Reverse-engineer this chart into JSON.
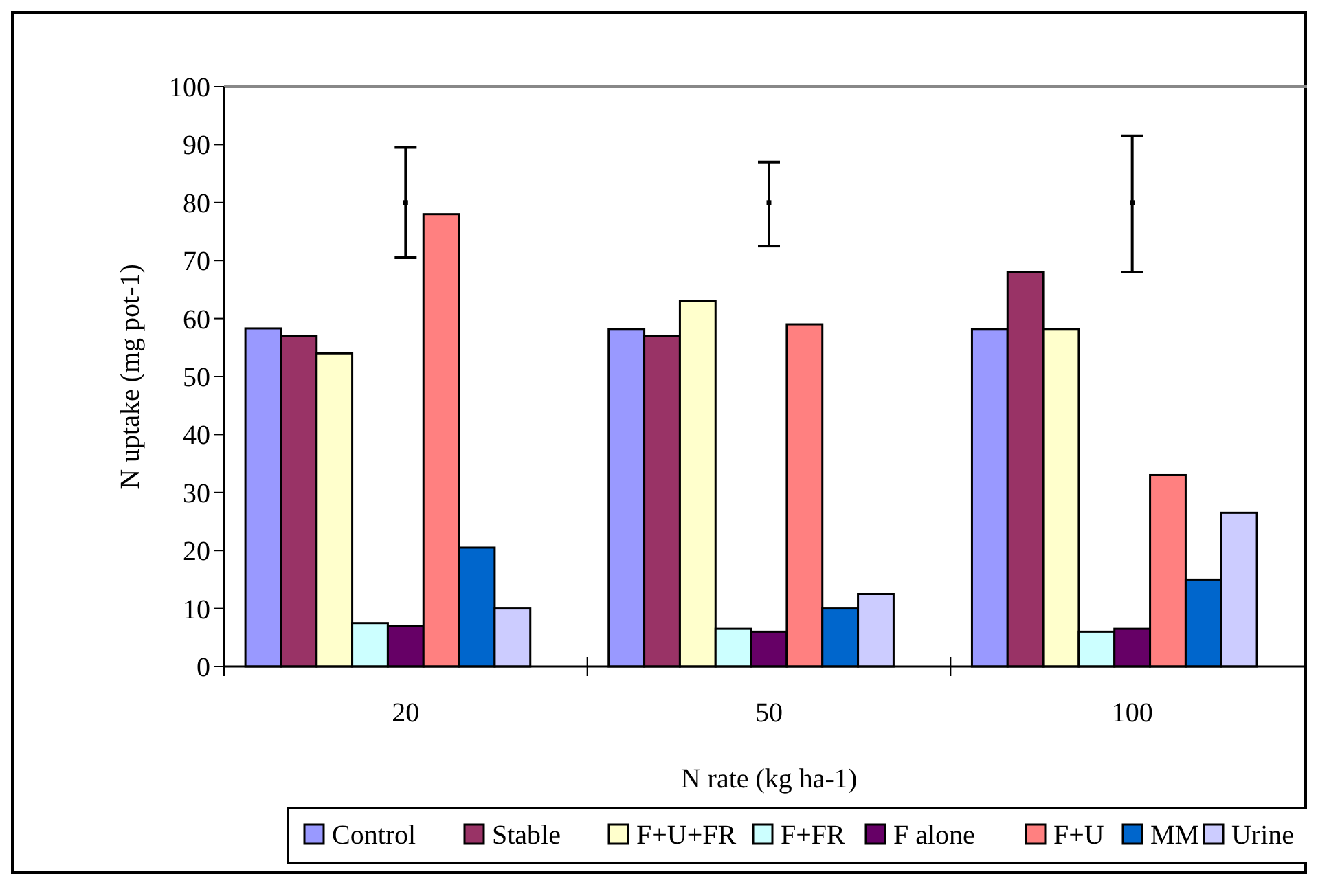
{
  "chart_data": {
    "type": "bar",
    "xlabel": "N rate (kg ha-1)",
    "ylabel": "N uptake (mg pot-1)",
    "categories": [
      "20",
      "50",
      "100"
    ],
    "ylim": [
      0,
      100
    ],
    "yticks": [
      0,
      10,
      20,
      30,
      40,
      50,
      60,
      70,
      80,
      90,
      100
    ],
    "legend": "bottom",
    "grid": false,
    "series": [
      {
        "name": "Control",
        "color": "#9999ff",
        "values": [
          58.3,
          58.2,
          58.2
        ]
      },
      {
        "name": "Stable",
        "color": "#993366",
        "values": [
          57,
          57,
          68
        ]
      },
      {
        "name": "F+U+FR",
        "color": "#ffffcc",
        "values": [
          54,
          63,
          58.2
        ]
      },
      {
        "name": "F+FR",
        "color": "#ccffff",
        "values": [
          7.5,
          6.5,
          6
        ]
      },
      {
        "name": "F alone",
        "color": "#660066",
        "values": [
          7,
          6,
          6.5
        ]
      },
      {
        "name": "F+U",
        "color": "#ff8080",
        "values": [
          78,
          59,
          33
        ]
      },
      {
        "name": "MM",
        "color": "#0066cc",
        "values": [
          20.5,
          10,
          15
        ]
      },
      {
        "name": "Urine",
        "color": "#ccccff",
        "values": [
          10,
          12.5,
          26.5
        ]
      },
      {
        "type": "scatter",
        "marker": "square",
        "color": "#000000",
        "x": [
          "20",
          "50",
          "100"
        ],
        "values": [
          80,
          80,
          80
        ],
        "errors": [
          [
            70.5,
            89.5
          ],
          [
            72.5,
            87
          ],
          [
            68,
            91.5
          ]
        ]
      }
    ]
  }
}
